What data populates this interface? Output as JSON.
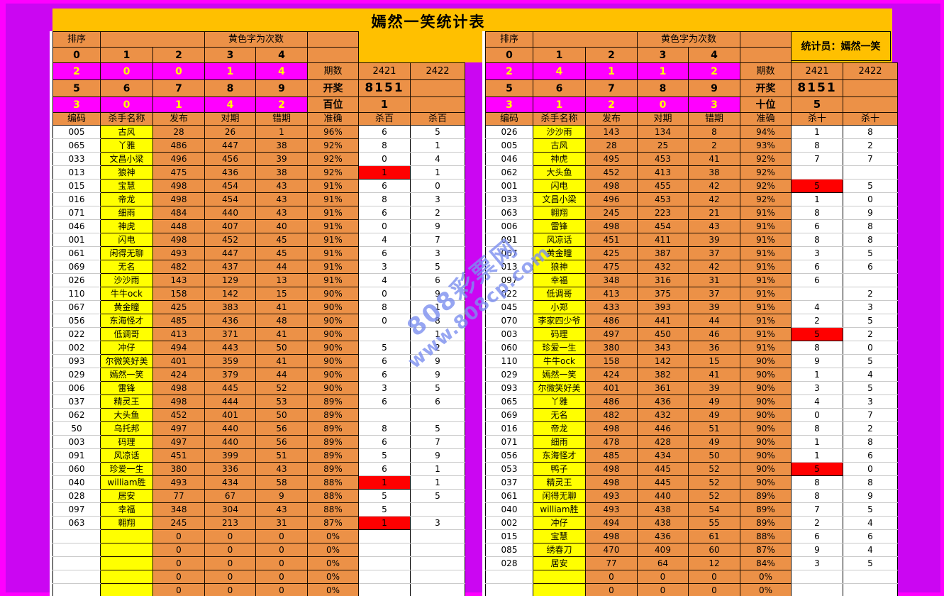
{
  "title": "嫣然一笑统计表",
  "statistician": "统计员：嫣然一笑",
  "watermark": {
    "line1": "808彩票网",
    "line2": "www.808cp.com"
  },
  "colors": {
    "background_outer": "#ff00ff",
    "background_inner": "#cb06f2",
    "title_band": "#ffc000",
    "cell_orange": "#ec9147",
    "cell_yellow": "#ffff00",
    "cell_magenta": "#ff00ff",
    "highlight_red": "#ff0000",
    "magenta_text": "#ffff00",
    "watermark_blue": "#7d8ff0"
  },
  "tables": [
    {
      "sort_label": "排序",
      "yellow_note": "黄色字为次数",
      "digit_row1": [
        "0",
        "1",
        "2",
        "3",
        "4"
      ],
      "count_row1": [
        "2",
        "0",
        "0",
        "1",
        "4"
      ],
      "digit_row2": [
        "5",
        "6",
        "7",
        "8",
        "9"
      ],
      "count_row2": [
        "3",
        "0",
        "1",
        "4",
        "2"
      ],
      "period_label": "期数",
      "period_values": [
        "2421",
        "2422"
      ],
      "draw_label": "开奖",
      "draw_value": "8151",
      "pos_label": "百位",
      "pos_value": "1",
      "columns": [
        "编码",
        "杀手名称",
        "发布",
        "对期",
        "错期",
        "准确",
        "杀百",
        "杀百"
      ],
      "rows": [
        {
          "code": "005",
          "name": "古风",
          "pub": "28",
          "hit": "26",
          "miss": "1",
          "acc": "96%",
          "k1": "6",
          "k2": "5",
          "r1": false
        },
        {
          "code": "065",
          "name": "丫雅",
          "pub": "486",
          "hit": "447",
          "miss": "38",
          "acc": "92%",
          "k1": "8",
          "k2": "1",
          "r1": false
        },
        {
          "code": "033",
          "name": "文昌小梁",
          "pub": "496",
          "hit": "456",
          "miss": "39",
          "acc": "92%",
          "k1": "0",
          "k2": "4",
          "r1": false
        },
        {
          "code": "013",
          "name": "狼神",
          "pub": "475",
          "hit": "436",
          "miss": "38",
          "acc": "92%",
          "k1": "1",
          "k2": "1",
          "r1": true
        },
        {
          "code": "015",
          "name": "宝慧",
          "pub": "498",
          "hit": "454",
          "miss": "43",
          "acc": "91%",
          "k1": "6",
          "k2": "0",
          "r1": false
        },
        {
          "code": "016",
          "name": "帝龙",
          "pub": "498",
          "hit": "454",
          "miss": "43",
          "acc": "91%",
          "k1": "8",
          "k2": "3",
          "r1": false
        },
        {
          "code": "071",
          "name": "细雨",
          "pub": "484",
          "hit": "440",
          "miss": "43",
          "acc": "91%",
          "k1": "6",
          "k2": "2",
          "r1": false
        },
        {
          "code": "046",
          "name": "神虎",
          "pub": "448",
          "hit": "407",
          "miss": "40",
          "acc": "91%",
          "k1": "0",
          "k2": "9",
          "r1": false
        },
        {
          "code": "001",
          "name": "闪电",
          "pub": "498",
          "hit": "452",
          "miss": "45",
          "acc": "91%",
          "k1": "4",
          "k2": "7",
          "r1": false
        },
        {
          "code": "061",
          "name": "闲得无聊",
          "pub": "493",
          "hit": "447",
          "miss": "45",
          "acc": "91%",
          "k1": "6",
          "k2": "3",
          "r1": false
        },
        {
          "code": "069",
          "name": "无名",
          "pub": "482",
          "hit": "437",
          "miss": "44",
          "acc": "91%",
          "k1": "3",
          "k2": "5",
          "r1": false
        },
        {
          "code": "026",
          "name": "沙沙雨",
          "pub": "143",
          "hit": "129",
          "miss": "13",
          "acc": "91%",
          "k1": "4",
          "k2": "6",
          "r1": false
        },
        {
          "code": "110",
          "name": "牛牛ock",
          "pub": "158",
          "hit": "142",
          "miss": "15",
          "acc": "90%",
          "k1": "0",
          "k2": "9",
          "r1": false
        },
        {
          "code": "067",
          "name": "黄金瞳",
          "pub": "425",
          "hit": "383",
          "miss": "41",
          "acc": "90%",
          "k1": "8",
          "k2": "1",
          "r1": false
        },
        {
          "code": "056",
          "name": "东海怪才",
          "pub": "485",
          "hit": "436",
          "miss": "48",
          "acc": "90%",
          "k1": "0",
          "k2": "8",
          "r1": false
        },
        {
          "code": "022",
          "name": "低调哥",
          "pub": "413",
          "hit": "371",
          "miss": "41",
          "acc": "90%",
          "k1": "",
          "k2": "1",
          "r1": false
        },
        {
          "code": "002",
          "name": "冲仔",
          "pub": "494",
          "hit": "443",
          "miss": "50",
          "acc": "90%",
          "k1": "5",
          "k2": "2",
          "r1": false
        },
        {
          "code": "093",
          "name": "尔微笑好美",
          "pub": "401",
          "hit": "359",
          "miss": "41",
          "acc": "90%",
          "k1": "6",
          "k2": "9",
          "r1": false
        },
        {
          "code": "029",
          "name": "嫣然一笑",
          "pub": "424",
          "hit": "379",
          "miss": "44",
          "acc": "90%",
          "k1": "6",
          "k2": "9",
          "r1": false
        },
        {
          "code": "006",
          "name": "雷锋",
          "pub": "498",
          "hit": "445",
          "miss": "52",
          "acc": "90%",
          "k1": "3",
          "k2": "5",
          "r1": false
        },
        {
          "code": "037",
          "name": "精灵王",
          "pub": "498",
          "hit": "444",
          "miss": "53",
          "acc": "89%",
          "k1": "6",
          "k2": "6",
          "r1": false
        },
        {
          "code": "062",
          "name": "大头鱼",
          "pub": "452",
          "hit": "401",
          "miss": "50",
          "acc": "89%",
          "k1": "",
          "k2": "",
          "r1": false
        },
        {
          "code": "50",
          "name": "乌托邦",
          "pub": "497",
          "hit": "440",
          "miss": "56",
          "acc": "89%",
          "k1": "8",
          "k2": "5",
          "r1": false
        },
        {
          "code": "003",
          "name": "码理",
          "pub": "497",
          "hit": "440",
          "miss": "56",
          "acc": "89%",
          "k1": "6",
          "k2": "7",
          "r1": false
        },
        {
          "code": "091",
          "name": "风凉话",
          "pub": "451",
          "hit": "399",
          "miss": "51",
          "acc": "89%",
          "k1": "5",
          "k2": "9",
          "r1": false
        },
        {
          "code": "060",
          "name": "珍爱一生",
          "pub": "380",
          "hit": "336",
          "miss": "43",
          "acc": "89%",
          "k1": "6",
          "k2": "1",
          "r1": false
        },
        {
          "code": "040",
          "name": "william胜",
          "pub": "493",
          "hit": "434",
          "miss": "58",
          "acc": "88%",
          "k1": "1",
          "k2": "1",
          "r1": true
        },
        {
          "code": "028",
          "name": "居安",
          "pub": "77",
          "hit": "67",
          "miss": "9",
          "acc": "88%",
          "k1": "5",
          "k2": "5",
          "r1": false
        },
        {
          "code": "097",
          "name": "幸福",
          "pub": "348",
          "hit": "304",
          "miss": "43",
          "acc": "88%",
          "k1": "5",
          "k2": "",
          "r1": false
        },
        {
          "code": "063",
          "name": "翱翔",
          "pub": "245",
          "hit": "213",
          "miss": "31",
          "acc": "87%",
          "k1": "1",
          "k2": "3",
          "r1": true
        },
        {
          "code": "",
          "name": "",
          "pub": "0",
          "hit": "0",
          "miss": "0",
          "acc": "0%",
          "k1": "",
          "k2": "",
          "r1": false
        },
        {
          "code": "",
          "name": "",
          "pub": "0",
          "hit": "0",
          "miss": "0",
          "acc": "0%",
          "k1": "",
          "k2": "",
          "r1": false
        },
        {
          "code": "",
          "name": "",
          "pub": "0",
          "hit": "0",
          "miss": "0",
          "acc": "0%",
          "k1": "",
          "k2": "",
          "r1": false
        },
        {
          "code": "",
          "name": "",
          "pub": "0",
          "hit": "0",
          "miss": "0",
          "acc": "0%",
          "k1": "",
          "k2": "",
          "r1": false
        },
        {
          "code": "",
          "name": "",
          "pub": "0",
          "hit": "0",
          "miss": "0",
          "acc": "0%",
          "k1": "",
          "k2": "",
          "r1": false
        }
      ]
    },
    {
      "sort_label": "排序",
      "yellow_note": "黄色字为次数",
      "digit_row1": [
        "0",
        "1",
        "2",
        "3",
        "4"
      ],
      "count_row1": [
        "2",
        "4",
        "1",
        "1",
        "2"
      ],
      "digit_row2": [
        "5",
        "6",
        "7",
        "8",
        "9"
      ],
      "count_row2": [
        "3",
        "1",
        "2",
        "0",
        "3"
      ],
      "period_label": "期数",
      "period_values": [
        "2421",
        "2422"
      ],
      "draw_label": "开奖",
      "draw_value": "8151",
      "pos_label": "十位",
      "pos_value": "5",
      "columns": [
        "编码",
        "杀手名称",
        "发布",
        "对期",
        "错期",
        "准确",
        "杀十",
        "杀十"
      ],
      "rows": [
        {
          "code": "026",
          "name": "沙沙雨",
          "pub": "143",
          "hit": "134",
          "miss": "8",
          "acc": "94%",
          "k1": "1",
          "k2": "8",
          "r1": false
        },
        {
          "code": "005",
          "name": "古风",
          "pub": "28",
          "hit": "25",
          "miss": "2",
          "acc": "93%",
          "k1": "8",
          "k2": "2",
          "r1": false
        },
        {
          "code": "046",
          "name": "神虎",
          "pub": "495",
          "hit": "453",
          "miss": "41",
          "acc": "92%",
          "k1": "7",
          "k2": "7",
          "r1": false
        },
        {
          "code": "062",
          "name": "大头鱼",
          "pub": "452",
          "hit": "413",
          "miss": "38",
          "acc": "92%",
          "k1": "",
          "k2": "",
          "r1": false
        },
        {
          "code": "001",
          "name": "闪电",
          "pub": "498",
          "hit": "455",
          "miss": "42",
          "acc": "92%",
          "k1": "5",
          "k2": "5",
          "r1": true
        },
        {
          "code": "033",
          "name": "文昌小梁",
          "pub": "496",
          "hit": "453",
          "miss": "42",
          "acc": "92%",
          "k1": "1",
          "k2": "0",
          "r1": false
        },
        {
          "code": "063",
          "name": "翱翔",
          "pub": "245",
          "hit": "223",
          "miss": "21",
          "acc": "91%",
          "k1": "8",
          "k2": "9",
          "r1": false
        },
        {
          "code": "006",
          "name": "雷锋",
          "pub": "498",
          "hit": "454",
          "miss": "43",
          "acc": "91%",
          "k1": "6",
          "k2": "8",
          "r1": false
        },
        {
          "code": "091",
          "name": "风凉话",
          "pub": "451",
          "hit": "411",
          "miss": "39",
          "acc": "91%",
          "k1": "8",
          "k2": "8",
          "r1": false
        },
        {
          "code": "067",
          "name": "黄金瞳",
          "pub": "425",
          "hit": "387",
          "miss": "37",
          "acc": "91%",
          "k1": "3",
          "k2": "5",
          "r1": false
        },
        {
          "code": "013",
          "name": "狼神",
          "pub": "475",
          "hit": "432",
          "miss": "42",
          "acc": "91%",
          "k1": "6",
          "k2": "6",
          "r1": false
        },
        {
          "code": "097",
          "name": "幸福",
          "pub": "348",
          "hit": "316",
          "miss": "31",
          "acc": "91%",
          "k1": "6",
          "k2": "",
          "r1": false
        },
        {
          "code": "022",
          "name": "低调哥",
          "pub": "413",
          "hit": "375",
          "miss": "37",
          "acc": "91%",
          "k1": "",
          "k2": "2",
          "r1": false
        },
        {
          "code": "045",
          "name": "小郑",
          "pub": "433",
          "hit": "393",
          "miss": "39",
          "acc": "91%",
          "k1": "4",
          "k2": "3",
          "r1": false
        },
        {
          "code": "070",
          "name": "李家四少爷",
          "pub": "486",
          "hit": "441",
          "miss": "44",
          "acc": "91%",
          "k1": "2",
          "k2": "5",
          "r1": false
        },
        {
          "code": "003",
          "name": "码理",
          "pub": "497",
          "hit": "450",
          "miss": "46",
          "acc": "91%",
          "k1": "5",
          "k2": "2",
          "r1": true
        },
        {
          "code": "060",
          "name": "珍爱一生",
          "pub": "380",
          "hit": "343",
          "miss": "36",
          "acc": "91%",
          "k1": "8",
          "k2": "0",
          "r1": false
        },
        {
          "code": "110",
          "name": "牛牛ock",
          "pub": "158",
          "hit": "142",
          "miss": "15",
          "acc": "90%",
          "k1": "9",
          "k2": "5",
          "r1": false
        },
        {
          "code": "029",
          "name": "嫣然一笑",
          "pub": "424",
          "hit": "382",
          "miss": "41",
          "acc": "90%",
          "k1": "1",
          "k2": "4",
          "r1": false
        },
        {
          "code": "093",
          "name": "尔微笑好美",
          "pub": "401",
          "hit": "361",
          "miss": "39",
          "acc": "90%",
          "k1": "3",
          "k2": "5",
          "r1": false
        },
        {
          "code": "065",
          "name": "丫雅",
          "pub": "486",
          "hit": "436",
          "miss": "49",
          "acc": "90%",
          "k1": "4",
          "k2": "3",
          "r1": false
        },
        {
          "code": "069",
          "name": "无名",
          "pub": "482",
          "hit": "432",
          "miss": "49",
          "acc": "90%",
          "k1": "0",
          "k2": "7",
          "r1": false
        },
        {
          "code": "016",
          "name": "帝龙",
          "pub": "498",
          "hit": "446",
          "miss": "51",
          "acc": "90%",
          "k1": "8",
          "k2": "2",
          "r1": false
        },
        {
          "code": "071",
          "name": "细雨",
          "pub": "478",
          "hit": "428",
          "miss": "49",
          "acc": "90%",
          "k1": "1",
          "k2": "8",
          "r1": false
        },
        {
          "code": "056",
          "name": "东海怪才",
          "pub": "485",
          "hit": "434",
          "miss": "50",
          "acc": "90%",
          "k1": "1",
          "k2": "6",
          "r1": false
        },
        {
          "code": "053",
          "name": "鸭子",
          "pub": "498",
          "hit": "445",
          "miss": "52",
          "acc": "90%",
          "k1": "5",
          "k2": "0",
          "r1": true
        },
        {
          "code": "037",
          "name": "精灵王",
          "pub": "498",
          "hit": "445",
          "miss": "52",
          "acc": "90%",
          "k1": "8",
          "k2": "8",
          "r1": false
        },
        {
          "code": "061",
          "name": "闲得无聊",
          "pub": "493",
          "hit": "440",
          "miss": "52",
          "acc": "89%",
          "k1": "8",
          "k2": "9",
          "r1": false
        },
        {
          "code": "040",
          "name": "william胜",
          "pub": "493",
          "hit": "438",
          "miss": "54",
          "acc": "89%",
          "k1": "7",
          "k2": "5",
          "r1": false
        },
        {
          "code": "002",
          "name": "冲仔",
          "pub": "494",
          "hit": "438",
          "miss": "55",
          "acc": "89%",
          "k1": "2",
          "k2": "4",
          "r1": false
        },
        {
          "code": "015",
          "name": "宝慧",
          "pub": "498",
          "hit": "436",
          "miss": "61",
          "acc": "88%",
          "k1": "6",
          "k2": "6",
          "r1": false
        },
        {
          "code": "085",
          "name": "绣春刀",
          "pub": "470",
          "hit": "409",
          "miss": "60",
          "acc": "87%",
          "k1": "9",
          "k2": "4",
          "r1": false
        },
        {
          "code": "028",
          "name": "居安",
          "pub": "77",
          "hit": "64",
          "miss": "12",
          "acc": "84%",
          "k1": "3",
          "k2": "5",
          "r1": false
        },
        {
          "code": "",
          "name": "",
          "pub": "0",
          "hit": "0",
          "miss": "0",
          "acc": "0%",
          "k1": "",
          "k2": "",
          "r1": false
        },
        {
          "code": "",
          "name": "",
          "pub": "0",
          "hit": "0",
          "miss": "0",
          "acc": "0%",
          "k1": "",
          "k2": "",
          "r1": false
        }
      ]
    }
  ]
}
